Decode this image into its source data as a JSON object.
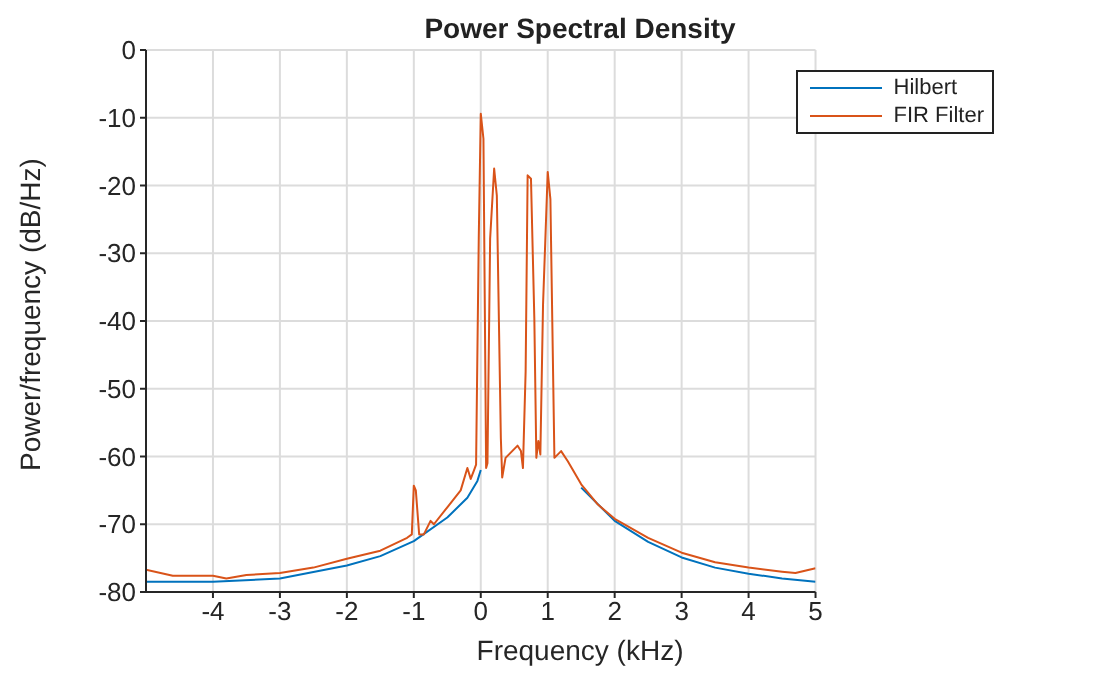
{
  "chart_data": {
    "type": "line",
    "title": "Power Spectral Density",
    "xlabel": "Frequency (kHz)",
    "ylabel": "Power/frequency (dB/Hz)",
    "xlim": [
      -5,
      5
    ],
    "xticks": [
      -4,
      -3,
      -2,
      -1,
      0,
      1,
      2,
      3,
      4,
      5
    ],
    "ylim": [
      -80,
      0
    ],
    "yticks": [
      -80,
      -70,
      -60,
      -50,
      -40,
      -30,
      -20,
      -10,
      0
    ],
    "grid": true,
    "legend": "top right",
    "marker": "none",
    "line_style": "solid",
    "series": [
      {
        "name": "Hilbert",
        "color": "#0072bd",
        "x": [
          -5,
          -4,
          -3,
          -2,
          -1.5,
          -1,
          -0.5,
          -0.2,
          -0.05,
          0,
          0.7,
          1.5,
          2,
          2.5,
          3,
          3.5,
          4,
          4.5,
          5
        ],
        "values": [
          -78.5,
          -78.5,
          -78,
          -76.1,
          -74.7,
          -72.5,
          -69,
          -66.1,
          -63.6,
          -62,
          null,
          -64.6,
          -69.5,
          -72.6,
          -74.9,
          -76.4,
          -77.3,
          -78,
          -78.5
        ]
      },
      {
        "name": "FIR Filter",
        "color": "#d95319",
        "x": [
          -5,
          -4.6,
          -4,
          -3.8,
          -3.5,
          -3,
          -2.5,
          -2,
          -1.5,
          -1.1,
          -1.03,
          -1,
          -0.97,
          -0.92,
          -0.85,
          -0.75,
          -0.7,
          -0.5,
          -0.3,
          -0.2,
          -0.15,
          -0.1,
          -0.07,
          -0.03,
          0,
          0.04,
          0.08,
          0.1,
          0.14,
          0.2,
          0.24,
          0.3,
          0.32,
          0.37,
          0.55,
          0.6,
          0.63,
          0.67,
          0.7,
          0.75,
          0.8,
          0.83,
          0.86,
          0.89,
          0.93,
          1,
          1.04,
          1.1,
          1.2,
          1.3,
          1.5,
          1.75,
          2,
          2.5,
          3,
          3.5,
          4,
          4.5,
          4.7,
          5
        ],
        "values": [
          -76.7,
          -77.6,
          -77.6,
          -78,
          -77.5,
          -77.2,
          -76.4,
          -75.1,
          -73.9,
          -72,
          -71.5,
          -64.3,
          -65,
          -71.5,
          -71.5,
          -69.5,
          -70,
          -67.5,
          -65,
          -61.7,
          -63.3,
          -62,
          -61.2,
          -27.8,
          -9.4,
          -13.1,
          -61.7,
          -61,
          -27.8,
          -17.5,
          -21.5,
          -57.3,
          -63.1,
          -60.2,
          -58.4,
          -59.2,
          -61.7,
          -47.5,
          -18.5,
          -19,
          -39.6,
          -60.2,
          -57.7,
          -59.7,
          -37.6,
          -18,
          -22,
          -60.2,
          -59.2,
          -60.7,
          -64.1,
          -67.1,
          -69.2,
          -72,
          -74.2,
          -75.6,
          -76.4,
          -77,
          -77.2,
          -76.5
        ]
      }
    ]
  }
}
